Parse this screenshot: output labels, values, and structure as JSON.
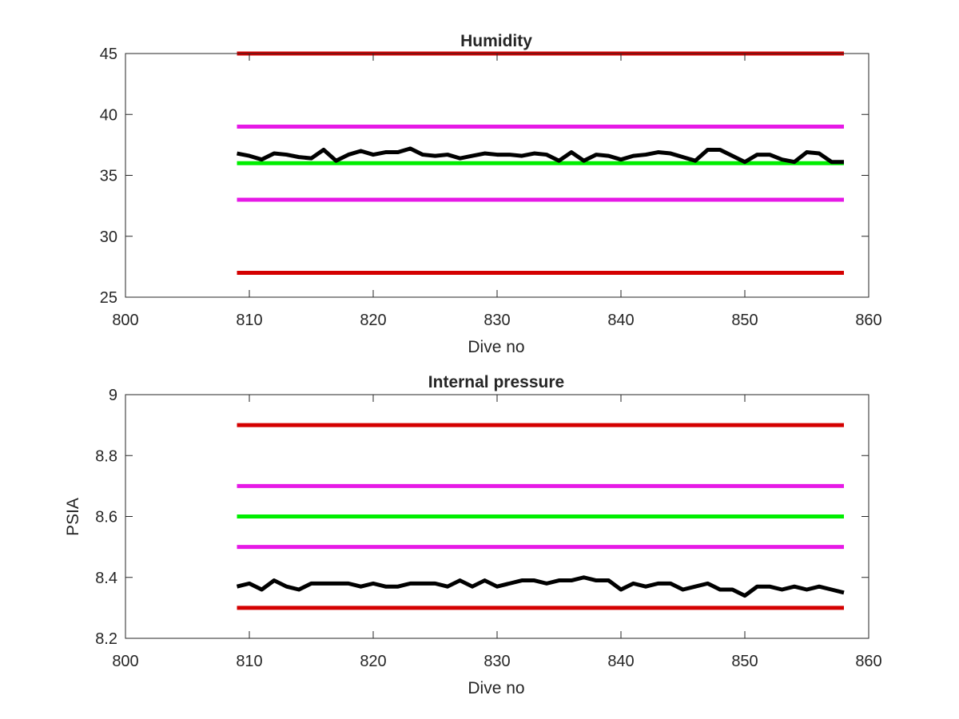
{
  "chart_data": [
    {
      "type": "line",
      "title": "Humidity",
      "xlabel": "Dive no",
      "ylabel": "",
      "xlim": [
        800,
        860
      ],
      "ylim": [
        25,
        45
      ],
      "xticks": [
        "800",
        "810",
        "820",
        "830",
        "840",
        "850",
        "860"
      ],
      "yticks": [
        "25",
        "30",
        "35",
        "40",
        "45"
      ],
      "grid": false,
      "threshold_lines": [
        {
          "y": 45,
          "x_range": [
            809,
            858
          ],
          "color": "#d40000"
        },
        {
          "y": 39,
          "x_range": [
            809,
            858
          ],
          "color": "#e619e6"
        },
        {
          "y": 36,
          "x_range": [
            809,
            858
          ],
          "color": "#00ee00"
        },
        {
          "y": 33,
          "x_range": [
            809,
            858
          ],
          "color": "#e619e6"
        },
        {
          "y": 27,
          "x_range": [
            809,
            858
          ],
          "color": "#d40000"
        }
      ],
      "series": [
        {
          "color": "#000000",
          "x": [
            809,
            810,
            811,
            812,
            813,
            814,
            815,
            816,
            817,
            818,
            819,
            820,
            821,
            822,
            823,
            824,
            825,
            826,
            827,
            828,
            829,
            830,
            831,
            832,
            833,
            834,
            835,
            836,
            837,
            838,
            839,
            840,
            841,
            842,
            843,
            844,
            845,
            846,
            847,
            848,
            849,
            850,
            851,
            852,
            853,
            854,
            855,
            856,
            857,
            858
          ],
          "y": [
            36.8,
            36.6,
            36.3,
            36.8,
            36.7,
            36.5,
            36.4,
            37.1,
            36.2,
            36.7,
            37.0,
            36.7,
            36.9,
            36.9,
            37.2,
            36.7,
            36.6,
            36.7,
            36.4,
            36.6,
            36.8,
            36.7,
            36.7,
            36.6,
            36.8,
            36.7,
            36.2,
            36.9,
            36.2,
            36.7,
            36.6,
            36.3,
            36.6,
            36.7,
            36.9,
            36.8,
            36.5,
            36.2,
            37.1,
            37.1,
            36.6,
            36.1,
            36.7,
            36.7,
            36.3,
            36.1,
            36.9,
            36.8,
            36.1,
            36.1
          ]
        }
      ]
    },
    {
      "type": "line",
      "title": "Internal pressure",
      "xlabel": "Dive no",
      "ylabel": "PSIA",
      "xlim": [
        800,
        860
      ],
      "ylim": [
        8.2,
        9
      ],
      "xticks": [
        "800",
        "810",
        "820",
        "830",
        "840",
        "850",
        "860"
      ],
      "yticks": [
        "8.2",
        "8.4",
        "8.6",
        "8.8",
        "9"
      ],
      "grid": false,
      "threshold_lines": [
        {
          "y": 8.9,
          "x_range": [
            809,
            858
          ],
          "color": "#d40000"
        },
        {
          "y": 8.7,
          "x_range": [
            809,
            858
          ],
          "color": "#e619e6"
        },
        {
          "y": 8.6,
          "x_range": [
            809,
            858
          ],
          "color": "#00ee00"
        },
        {
          "y": 8.5,
          "x_range": [
            809,
            858
          ],
          "color": "#e619e6"
        },
        {
          "y": 8.3,
          "x_range": [
            809,
            858
          ],
          "color": "#d40000"
        }
      ],
      "series": [
        {
          "color": "#000000",
          "x": [
            809,
            810,
            811,
            812,
            813,
            814,
            815,
            816,
            817,
            818,
            819,
            820,
            821,
            822,
            823,
            824,
            825,
            826,
            827,
            828,
            829,
            830,
            831,
            832,
            833,
            834,
            835,
            836,
            837,
            838,
            839,
            840,
            841,
            842,
            843,
            844,
            845,
            846,
            847,
            848,
            849,
            850,
            851,
            852,
            853,
            854,
            855,
            856,
            857,
            858
          ],
          "y": [
            8.37,
            8.38,
            8.36,
            8.39,
            8.37,
            8.36,
            8.38,
            8.38,
            8.38,
            8.38,
            8.37,
            8.38,
            8.37,
            8.37,
            8.38,
            8.38,
            8.38,
            8.37,
            8.39,
            8.37,
            8.39,
            8.37,
            8.38,
            8.39,
            8.39,
            8.38,
            8.39,
            8.39,
            8.4,
            8.39,
            8.39,
            8.36,
            8.38,
            8.37,
            8.38,
            8.38,
            8.36,
            8.37,
            8.38,
            8.36,
            8.36,
            8.34,
            8.37,
            8.37,
            8.36,
            8.37,
            8.36,
            8.37,
            8.36,
            8.35
          ]
        }
      ]
    }
  ]
}
